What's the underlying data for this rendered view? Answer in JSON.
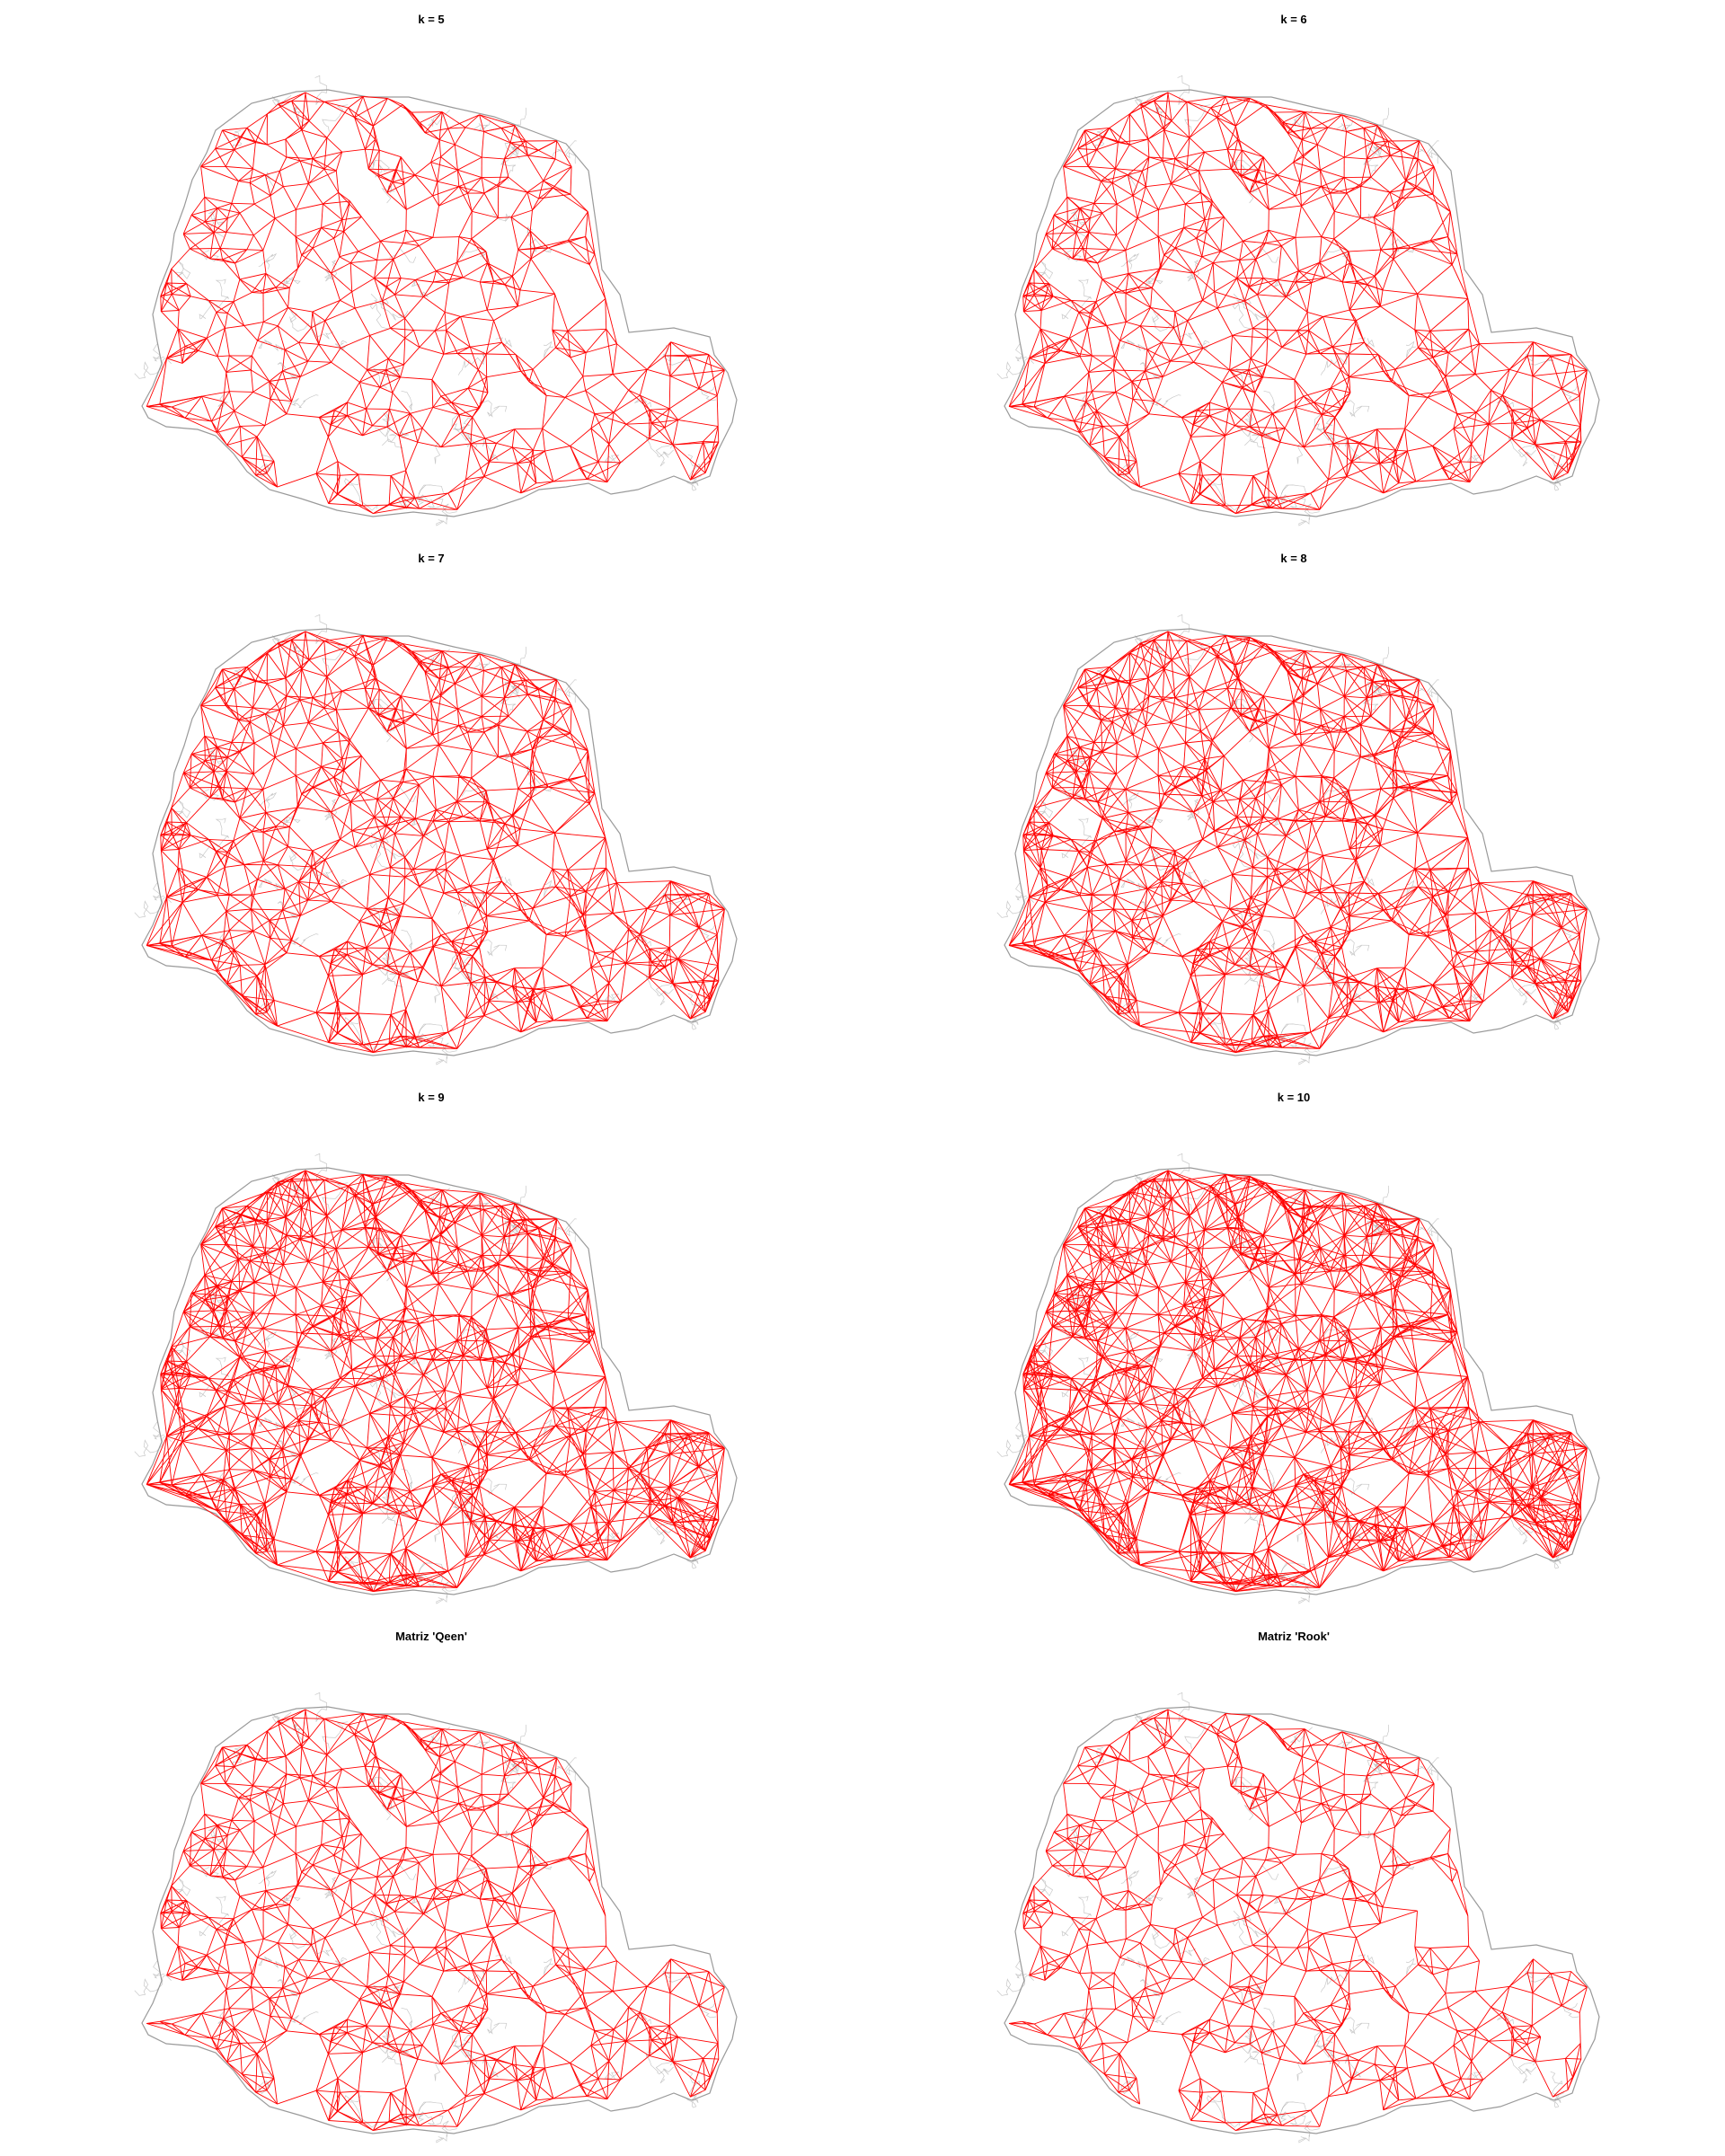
{
  "figure": {
    "panels": [
      {
        "id": "k5",
        "title": "k = 5",
        "neighbors_k": 5
      },
      {
        "id": "k6",
        "title": "k = 6",
        "neighbors_k": 6
      },
      {
        "id": "k7",
        "title": "k = 7",
        "neighbors_k": 7
      },
      {
        "id": "k8",
        "title": "k = 8",
        "neighbors_k": 8
      },
      {
        "id": "k9",
        "title": "k = 9",
        "neighbors_k": 9
      },
      {
        "id": "k10",
        "title": "k = 10",
        "neighbors_k": 10
      },
      {
        "id": "queen",
        "title": "Matriz 'Qeen'",
        "contiguity": "queen"
      },
      {
        "id": "rook",
        "title": "Matriz 'Rook'",
        "contiguity": "rook"
      }
    ],
    "colors": {
      "network": "#ff0000",
      "boundary": "#9a9a9a",
      "background": "#ffffff"
    }
  }
}
